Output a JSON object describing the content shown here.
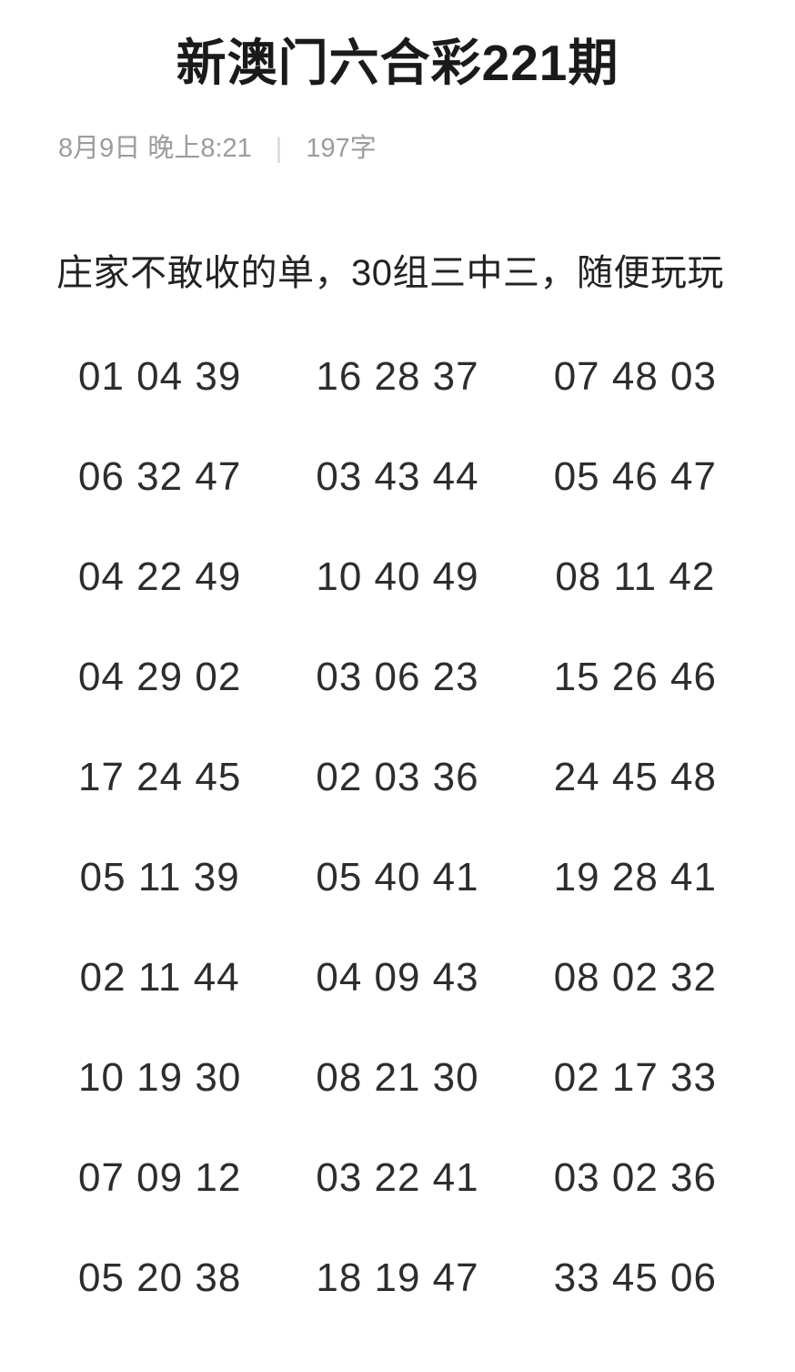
{
  "article": {
    "title": "新澳门六合彩221期",
    "meta": {
      "datetime": "8月9日 晚上8:21",
      "separator": "|",
      "word_count": "197字"
    },
    "lead": "庄家不敢收的单，30组三中三，随便玩玩",
    "rows": [
      [
        "01 04 39",
        "16 28 37",
        "07 48 03"
      ],
      [
        "06 32 47",
        "03 43 44",
        "05 46 47"
      ],
      [
        "04 22 49",
        "10 40 49",
        "08 11 42"
      ],
      [
        "04 29 02",
        "03 06 23",
        "15 26 46"
      ],
      [
        "17 24 45",
        "02 03 36",
        "24 45 48"
      ],
      [
        "05 11 39",
        "05 40 41",
        "19 28 41"
      ],
      [
        "02 11 44",
        "04 09 43",
        "08 02 32"
      ],
      [
        "10 19 30",
        "08 21 30",
        "02 17 33"
      ],
      [
        "07 09 12",
        "03 22 41",
        "03 02 36"
      ],
      [
        "05 20 38",
        "18 19 47",
        "33 45 06"
      ]
    ],
    "colors": {
      "background": "#ffffff",
      "title_text": "#1a1a1a",
      "meta_text": "#9c9c9c",
      "body_text": "#2d2d2d"
    }
  }
}
